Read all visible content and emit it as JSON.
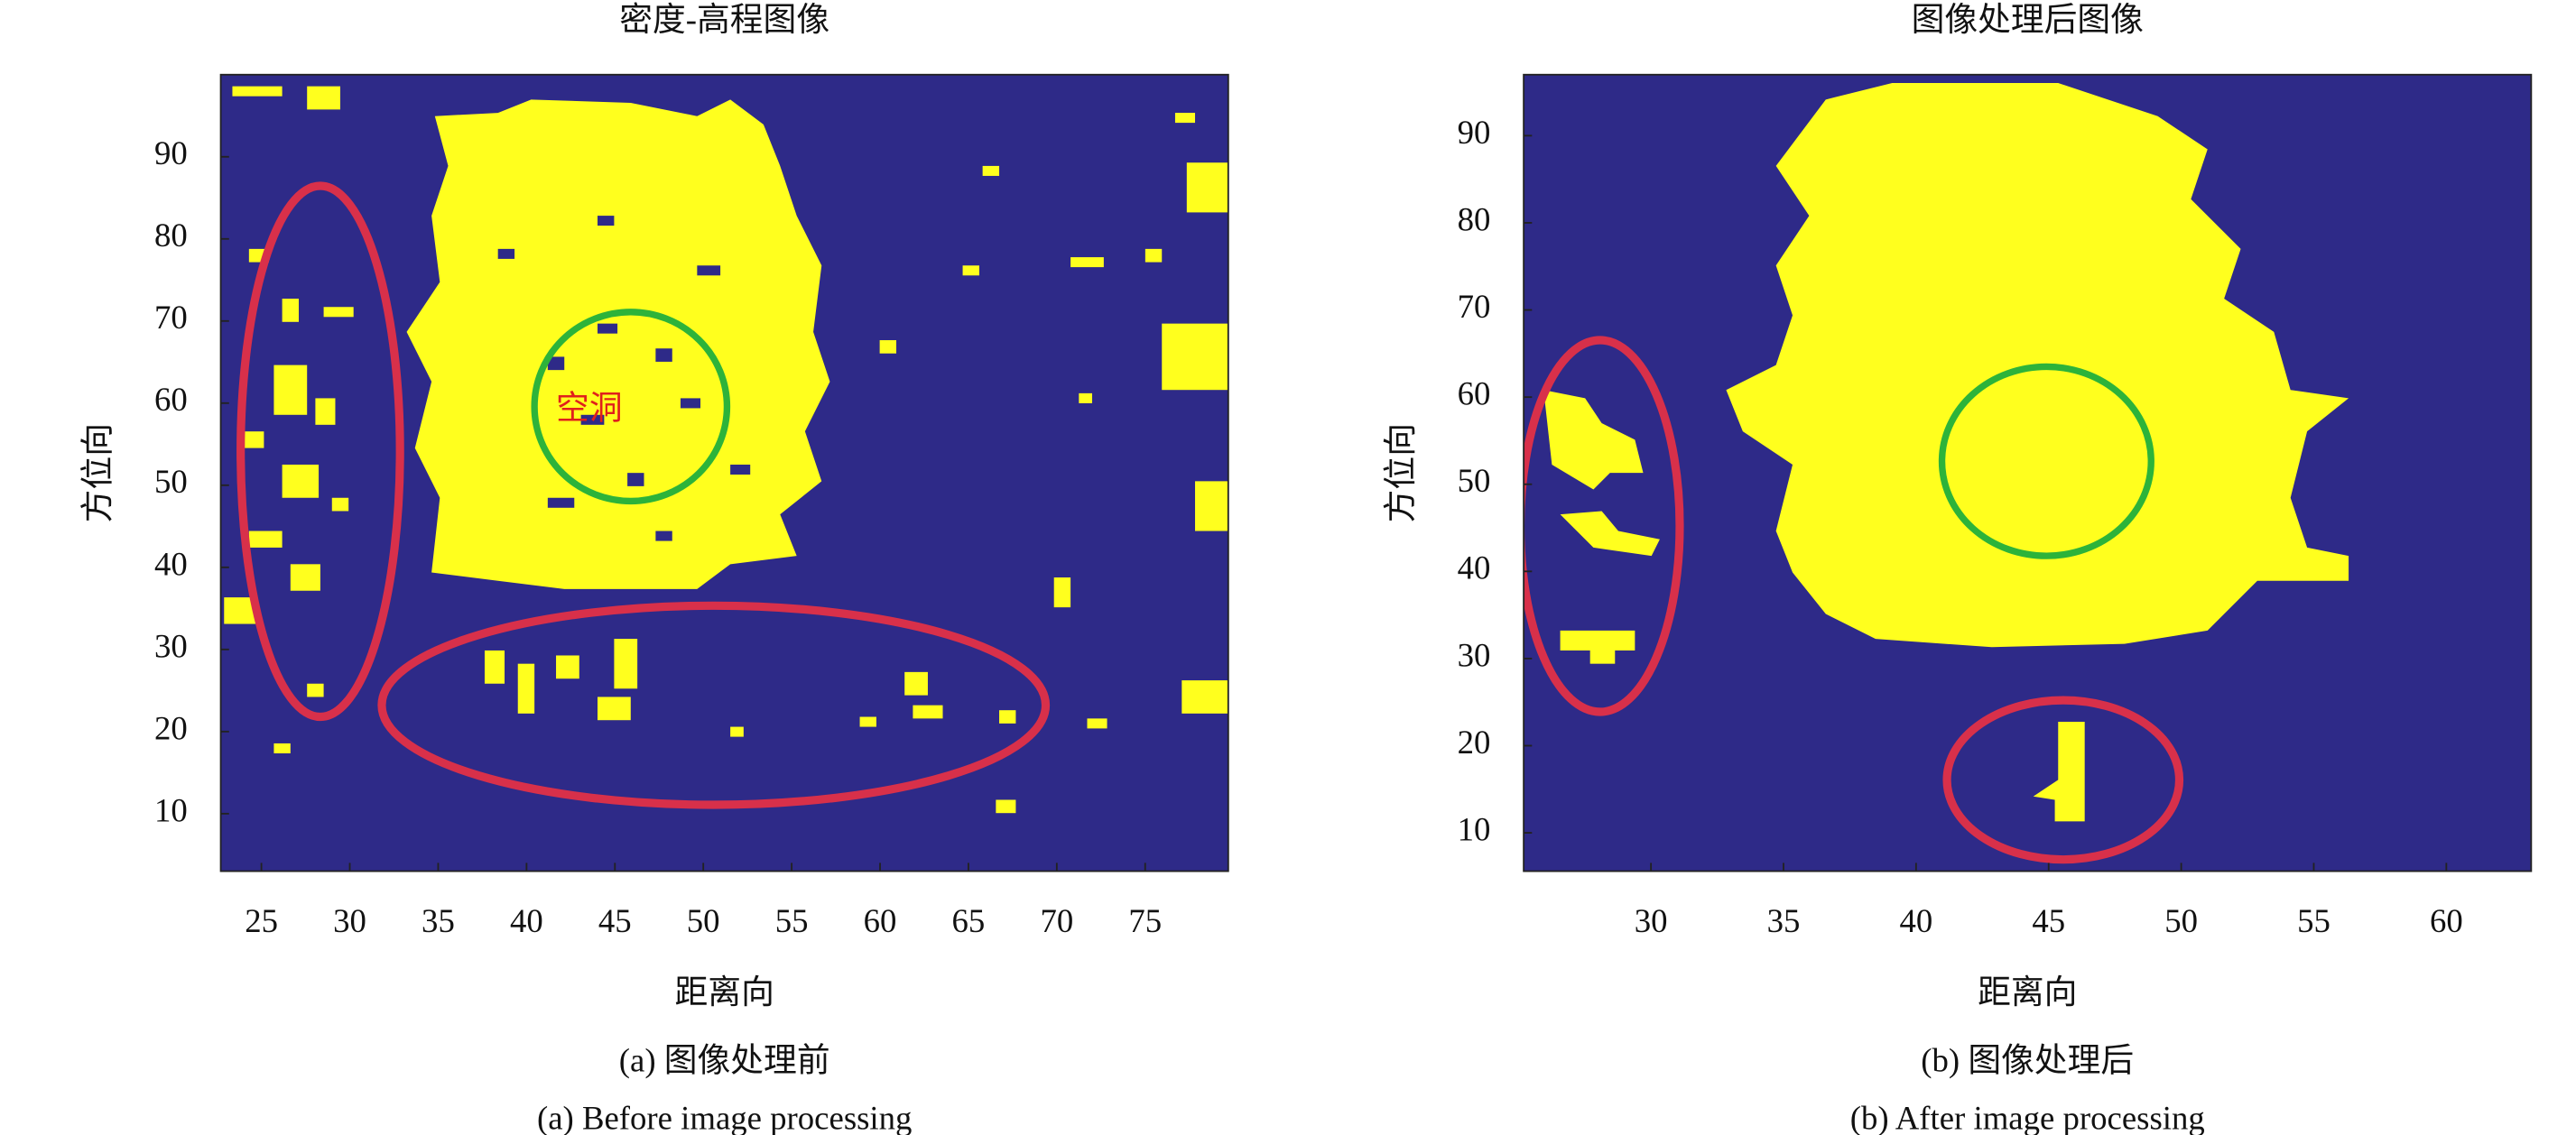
{
  "chart_data": [
    {
      "type": "image",
      "title": "密度-高程图像",
      "xlabel": "距离向",
      "ylabel": "方位向",
      "xlim": [
        22.7,
        79.7
      ],
      "ylim": [
        3,
        100
      ],
      "xticks": [
        25,
        30,
        35,
        40,
        45,
        50,
        55,
        60,
        65,
        70,
        75
      ],
      "yticks": [
        10,
        20,
        30,
        40,
        50,
        60,
        70,
        80,
        90
      ],
      "annotation": "空洞",
      "caption_zh": "(a) 图像处理前",
      "caption_en": "(a) Before image processing"
    },
    {
      "type": "image",
      "title": "图像处理后图像",
      "xlabel": "距离向",
      "ylabel": "方位向",
      "xlim": [
        25.2,
        63.2
      ],
      "ylim": [
        5.6,
        97
      ],
      "xticks": [
        30,
        35,
        40,
        45,
        50,
        55,
        60
      ],
      "yticks": [
        10,
        20,
        30,
        40,
        50,
        60,
        70,
        80,
        90
      ],
      "caption_zh": "(b) 图像处理后",
      "caption_en": "(b) After image processing"
    }
  ]
}
